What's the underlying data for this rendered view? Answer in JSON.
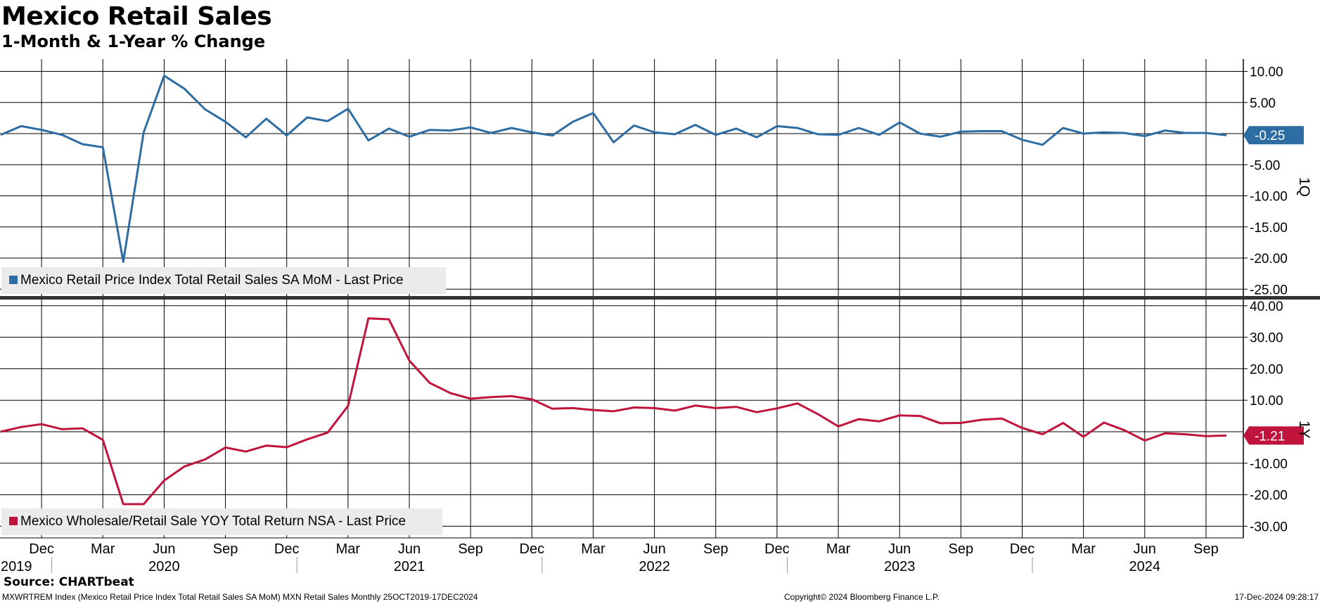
{
  "title": "Mexico Retail Sales",
  "subtitle": "1-Month & 1-Year % Change",
  "source": "Source: CHARTbeat",
  "footer": {
    "description": "MXWRTREM Index (Mexico Retail Price Index Total Retail Sales SA MoM) MXN Retail Sales  Monthly 25OCT2019-17DEC2024",
    "copyright": "Copyright© 2024 Bloomberg Finance L.P.",
    "timestamp": "17-Dec-2024 09:28:17"
  },
  "colors": {
    "mom_series": "#2e6da4",
    "yoy_series": "#c0143c",
    "grid": "#000000"
  },
  "chart_data": [
    {
      "type": "line",
      "panel": "top",
      "axis_label": "1Q",
      "ylim": [
        -27,
        13
      ],
      "yticks": [
        "10.00",
        "5.00",
        "-5.00",
        "-10.00",
        "-15.00",
        "-20.00",
        "-25.00"
      ],
      "ytick_values": [
        10,
        5,
        -5,
        -10,
        -15,
        -20,
        -25
      ],
      "grid": true,
      "legend_position": "bottom-left",
      "series": [
        {
          "name": "Mexico Retail Price Index Total Retail Sales SA MoM - Last Price",
          "last_value_label": "-0.25",
          "last_value": -0.25,
          "x": [
            "2019-10",
            "2019-11",
            "2019-12",
            "2020-01",
            "2020-02",
            "2020-03",
            "2020-04",
            "2020-05",
            "2020-06",
            "2020-07",
            "2020-08",
            "2020-09",
            "2020-10",
            "2020-11",
            "2020-12",
            "2021-01",
            "2021-02",
            "2021-03",
            "2021-04",
            "2021-05",
            "2021-06",
            "2021-07",
            "2021-08",
            "2021-09",
            "2021-10",
            "2021-11",
            "2021-12",
            "2022-01",
            "2022-02",
            "2022-03",
            "2022-04",
            "2022-05",
            "2022-06",
            "2022-07",
            "2022-08",
            "2022-09",
            "2022-10",
            "2022-11",
            "2022-12",
            "2023-01",
            "2023-02",
            "2023-03",
            "2023-04",
            "2023-05",
            "2023-06",
            "2023-07",
            "2023-08",
            "2023-09",
            "2023-10",
            "2023-11",
            "2023-12",
            "2024-01",
            "2024-02",
            "2024-03",
            "2024-04",
            "2024-05",
            "2024-06",
            "2024-07",
            "2024-08",
            "2024-09",
            "2024-10"
          ],
          "values": [
            -0.2,
            1.2,
            0.6,
            -0.2,
            -1.7,
            -2.2,
            -20.6,
            0.2,
            9.3,
            7.2,
            3.9,
            1.9,
            -0.6,
            2.4,
            -0.3,
            2.6,
            2.0,
            4.0,
            -1.1,
            0.8,
            -0.5,
            0.6,
            0.5,
            1.0,
            0.1,
            0.9,
            0.2,
            -0.3,
            1.9,
            3.3,
            -1.4,
            1.3,
            0.2,
            -0.1,
            1.4,
            -0.2,
            0.8,
            -0.6,
            1.2,
            0.9,
            -0.1,
            -0.2,
            0.9,
            -0.2,
            1.8,
            0.0,
            -0.5,
            0.3,
            0.4,
            0.4,
            -1.0,
            -1.8,
            0.9,
            0.0,
            0.2,
            0.1,
            -0.4,
            0.5,
            0.1,
            0.1,
            -0.25
          ]
        }
      ]
    },
    {
      "type": "line",
      "panel": "bottom",
      "axis_label": "1Y",
      "ylim": [
        -33,
        44
      ],
      "yticks": [
        "40.00",
        "30.00",
        "20.00",
        "10.00",
        "-10.00",
        "-20.00",
        "-30.00"
      ],
      "ytick_values": [
        40,
        30,
        20,
        10,
        -10,
        -20,
        -30
      ],
      "grid": true,
      "legend_position": "bottom-left",
      "series": [
        {
          "name": "Mexico Wholesale/Retail Sale YOY Total Return NSA - Last Price",
          "last_value_label": "-1.21",
          "last_value": -1.21,
          "x": [
            "2019-10",
            "2019-11",
            "2019-12",
            "2020-01",
            "2020-02",
            "2020-03",
            "2020-04",
            "2020-05",
            "2020-06",
            "2020-07",
            "2020-08",
            "2020-09",
            "2020-10",
            "2020-11",
            "2020-12",
            "2021-01",
            "2021-02",
            "2021-03",
            "2021-04",
            "2021-05",
            "2021-06",
            "2021-07",
            "2021-08",
            "2021-09",
            "2021-10",
            "2021-11",
            "2021-12",
            "2022-01",
            "2022-02",
            "2022-03",
            "2022-04",
            "2022-05",
            "2022-06",
            "2022-07",
            "2022-08",
            "2022-09",
            "2022-10",
            "2022-11",
            "2022-12",
            "2023-01",
            "2023-02",
            "2023-03",
            "2023-04",
            "2023-05",
            "2023-06",
            "2023-07",
            "2023-08",
            "2023-09",
            "2023-10",
            "2023-11",
            "2023-12",
            "2024-01",
            "2024-02",
            "2024-03",
            "2024-04",
            "2024-05",
            "2024-06",
            "2024-07",
            "2024-08",
            "2024-09",
            "2024-10"
          ],
          "values": [
            0.0,
            1.5,
            2.4,
            0.8,
            1.1,
            -2.6,
            -23.0,
            -23.0,
            -15.5,
            -11.0,
            -8.8,
            -5.0,
            -6.3,
            -4.4,
            -4.9,
            -2.4,
            -0.3,
            8.2,
            36.0,
            35.7,
            22.6,
            15.5,
            12.3,
            10.5,
            11.0,
            11.3,
            10.3,
            7.3,
            7.5,
            6.9,
            6.5,
            7.7,
            7.5,
            6.7,
            8.3,
            7.5,
            7.9,
            6.2,
            7.4,
            9.0,
            5.6,
            1.7,
            4.0,
            3.3,
            5.2,
            5.0,
            2.7,
            2.8,
            3.8,
            4.2,
            1.2,
            -0.8,
            2.8,
            -1.6,
            2.9,
            0.5,
            -2.8,
            -0.5,
            -0.8,
            -1.4,
            -1.21
          ]
        }
      ]
    }
  ],
  "x_axis": {
    "month_labels": [
      {
        "label": "Dec",
        "date": "2019-12"
      },
      {
        "label": "Mar",
        "date": "2020-03"
      },
      {
        "label": "Jun",
        "date": "2020-06"
      },
      {
        "label": "Sep",
        "date": "2020-09"
      },
      {
        "label": "Dec",
        "date": "2020-12"
      },
      {
        "label": "Mar",
        "date": "2021-03"
      },
      {
        "label": "Jun",
        "date": "2021-06"
      },
      {
        "label": "Sep",
        "date": "2021-09"
      },
      {
        "label": "Dec",
        "date": "2021-12"
      },
      {
        "label": "Mar",
        "date": "2022-03"
      },
      {
        "label": "Jun",
        "date": "2022-06"
      },
      {
        "label": "Sep",
        "date": "2022-09"
      },
      {
        "label": "Dec",
        "date": "2022-12"
      },
      {
        "label": "Mar",
        "date": "2023-03"
      },
      {
        "label": "Jun",
        "date": "2023-06"
      },
      {
        "label": "Sep",
        "date": "2023-09"
      },
      {
        "label": "Dec",
        "date": "2023-12"
      },
      {
        "label": "Mar",
        "date": "2024-03"
      },
      {
        "label": "Jun",
        "date": "2024-06"
      },
      {
        "label": "Sep",
        "date": "2024-09"
      }
    ],
    "year_labels": [
      {
        "label": "2019",
        "date": "2019-10"
      },
      {
        "label": "2020",
        "date": "2020-06"
      },
      {
        "label": "2021",
        "date": "2021-06"
      },
      {
        "label": "2022",
        "date": "2022-06"
      },
      {
        "label": "2023",
        "date": "2023-06"
      },
      {
        "label": "2024",
        "date": "2024-06"
      }
    ],
    "year_boundaries": [
      "2020-01",
      "2021-01",
      "2022-01",
      "2023-01",
      "2024-01"
    ]
  }
}
